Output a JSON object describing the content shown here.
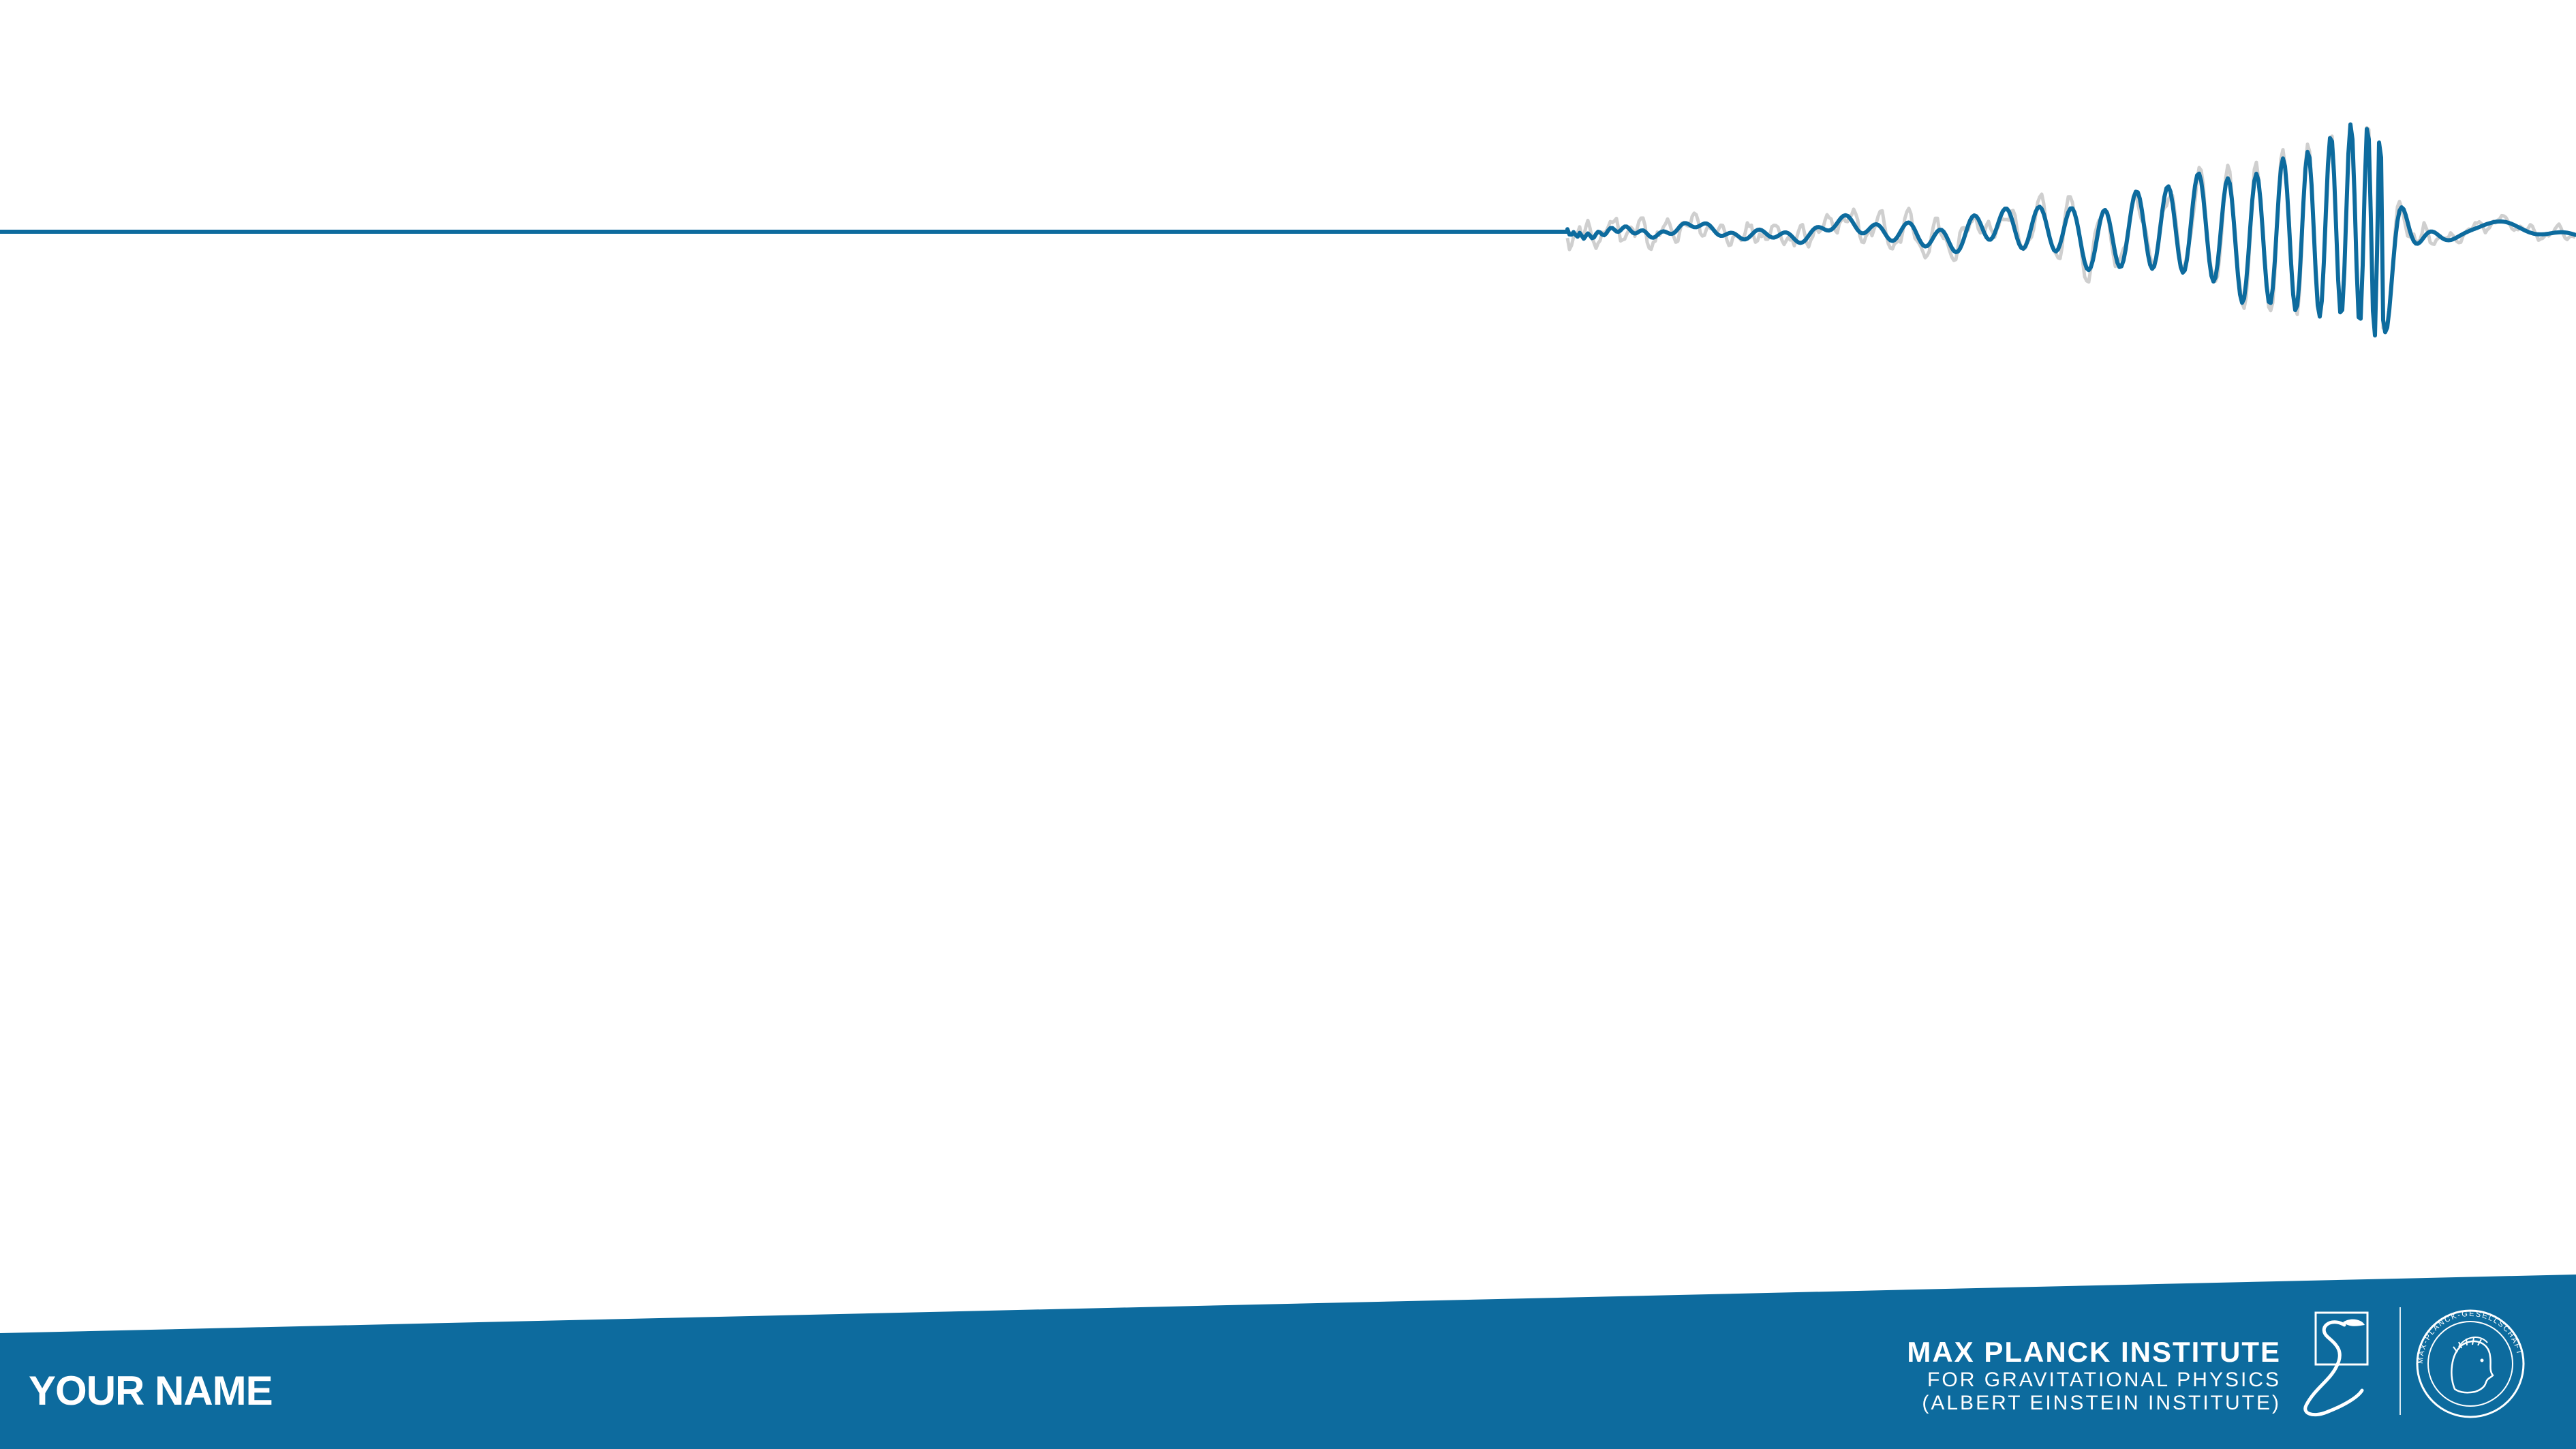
{
  "slide": {
    "presenter_name": "YOUR NAME",
    "institute": {
      "name": "MAX PLANCK INSTITUTE",
      "line2": "FOR GRAVITATIONAL PHYSICS",
      "line3": "(ALBERT EINSTEIN INSTITUTE)"
    },
    "logos": {
      "aei": "aei-logo-icon",
      "minerva": "minerva-seal-icon",
      "minerva_text": "MAX-PLANCK-GESELLSCHAFT"
    }
  },
  "colors": {
    "brand_blue": "#0d6b9e",
    "wave_blue": "#0d6b9e",
    "noise_gray": "#cfcfcf",
    "background": "#ffffff",
    "text_on_band": "#ffffff"
  }
}
